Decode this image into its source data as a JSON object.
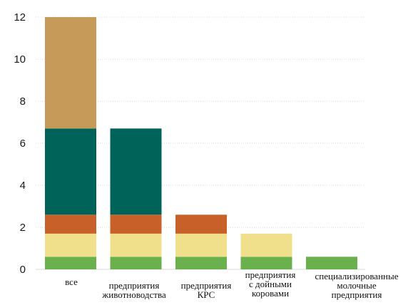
{
  "chart_data": {
    "type": "bar",
    "stacked": true,
    "categories": [
      [
        "все"
      ],
      [
        "предприятия",
        "животноводства"
      ],
      [
        "предприятия",
        "КРС"
      ],
      [
        "предприятия",
        "с дойными",
        "коровами"
      ],
      [
        "специализированные",
        "молочные",
        "предприятия"
      ]
    ],
    "series": [
      {
        "color": "#6ab04c",
        "values": [
          0.6,
          0.6,
          0.6,
          0.6,
          0.6
        ]
      },
      {
        "color": "#f0e08c",
        "values": [
          1.1,
          1.1,
          1.1,
          1.1,
          0
        ]
      },
      {
        "color": "#c8602a",
        "values": [
          0.9,
          0.9,
          0.9,
          0,
          0
        ]
      },
      {
        "color": "#00635a",
        "values": [
          4.1,
          4.1,
          0,
          0,
          0
        ]
      },
      {
        "color": "#c69a58",
        "values": [
          5.3,
          0,
          0,
          0,
          0
        ]
      }
    ],
    "ylim": [
      0,
      12
    ],
    "yticks": [
      0,
      2,
      4,
      6,
      8,
      10,
      12
    ],
    "grid": true,
    "legend": "none"
  }
}
